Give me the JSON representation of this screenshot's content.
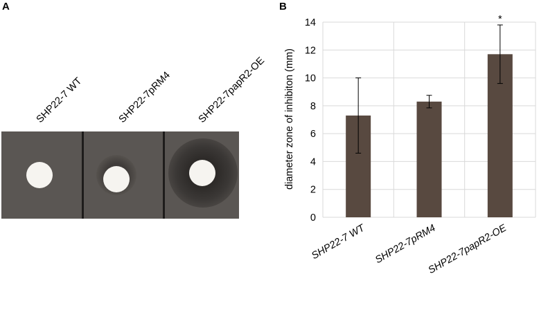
{
  "panel_a": {
    "letter": "A",
    "strains": [
      "SHP22-7 WT",
      "SHP22-7pRM4",
      "SHP22-7papR2-OE"
    ]
  },
  "panel_b": {
    "letter": "B"
  },
  "colors": {
    "bar": "#584940",
    "grid": "#d9d9d9",
    "plate": "#5a5653",
    "divider": "#1e1c1b",
    "disc": "#f6f4f0"
  },
  "chart_data": {
    "type": "bar",
    "categories": [
      "SHP22-7 WT",
      "SHP22-7pRM4",
      "SHP22-7papR2-OE"
    ],
    "values": [
      7.3,
      8.3,
      11.7
    ],
    "errors": [
      2.7,
      0.45,
      2.1
    ],
    "annotations": [
      "",
      "",
      "*"
    ],
    "xlabel": "",
    "ylabel": "diameter zone of inhibiton (mm)",
    "ylim": [
      0,
      14
    ],
    "yticks": [
      0,
      2,
      4,
      6,
      8,
      10,
      12,
      14
    ],
    "grid": true
  }
}
